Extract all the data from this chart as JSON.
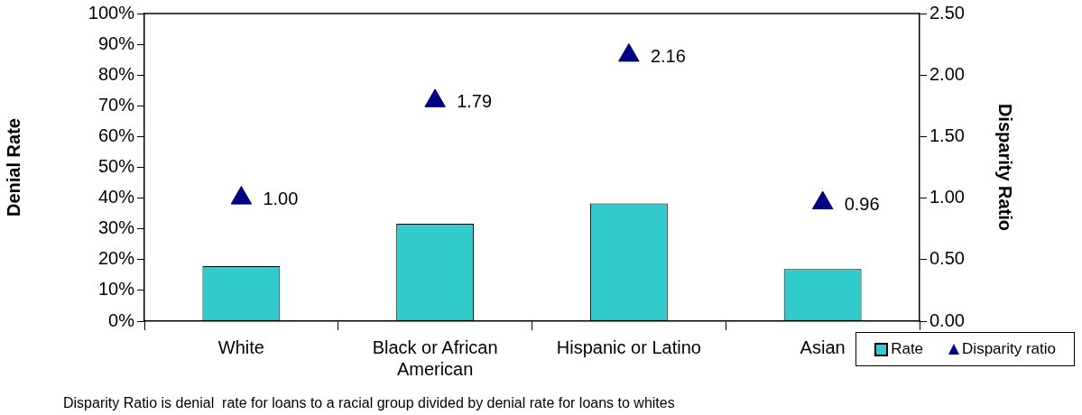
{
  "chart_data": {
    "type": "bar",
    "ylabel": "Denial Rate",
    "y2label": "Disparity Ratio",
    "categories": [
      "White",
      "Black or African American",
      "Hispanic or Latino",
      "Asian"
    ],
    "series": [
      {
        "name": "Rate",
        "color": "#33cccc",
        "values": [
          17.9,
          31.7,
          38.3,
          16.9
        ]
      },
      {
        "name": "Disparity ratio",
        "type": "scatter",
        "axis": "y2",
        "color": "#000080",
        "marker": "triangle",
        "values": [
          1.0,
          1.79,
          2.16,
          0.96
        ],
        "value_labels": [
          "1.00",
          "1.79",
          "2.16",
          "0.96"
        ]
      }
    ],
    "ylim": [
      0,
      100
    ],
    "yticks": [
      {
        "value": 0,
        "label": "0%"
      },
      {
        "value": 10,
        "label": "10%"
      },
      {
        "value": 20,
        "label": "20%"
      },
      {
        "value": 30,
        "label": "30%"
      },
      {
        "value": 40,
        "label": "40%"
      },
      {
        "value": 50,
        "label": "50%"
      },
      {
        "value": 60,
        "label": "60%"
      },
      {
        "value": 70,
        "label": "70%"
      },
      {
        "value": 80,
        "label": "80%"
      },
      {
        "value": 90,
        "label": "90%"
      },
      {
        "value": 100,
        "label": "100%"
      }
    ],
    "y2lim": [
      0,
      2.5
    ],
    "y2ticks": [
      {
        "value": 0,
        "label": "0.00"
      },
      {
        "value": 0.5,
        "label": "0.50"
      },
      {
        "value": 1,
        "label": "1.00"
      },
      {
        "value": 1.5,
        "label": "1.50"
      },
      {
        "value": 2,
        "label": "2.00"
      },
      {
        "value": 2.5,
        "label": "2.50"
      }
    ],
    "grid": false,
    "legend": "bottom right",
    "annotations": [
      "Disparity Ratio is denial  rate for loans to a racial group divided by denial rate for loans to whites"
    ]
  }
}
